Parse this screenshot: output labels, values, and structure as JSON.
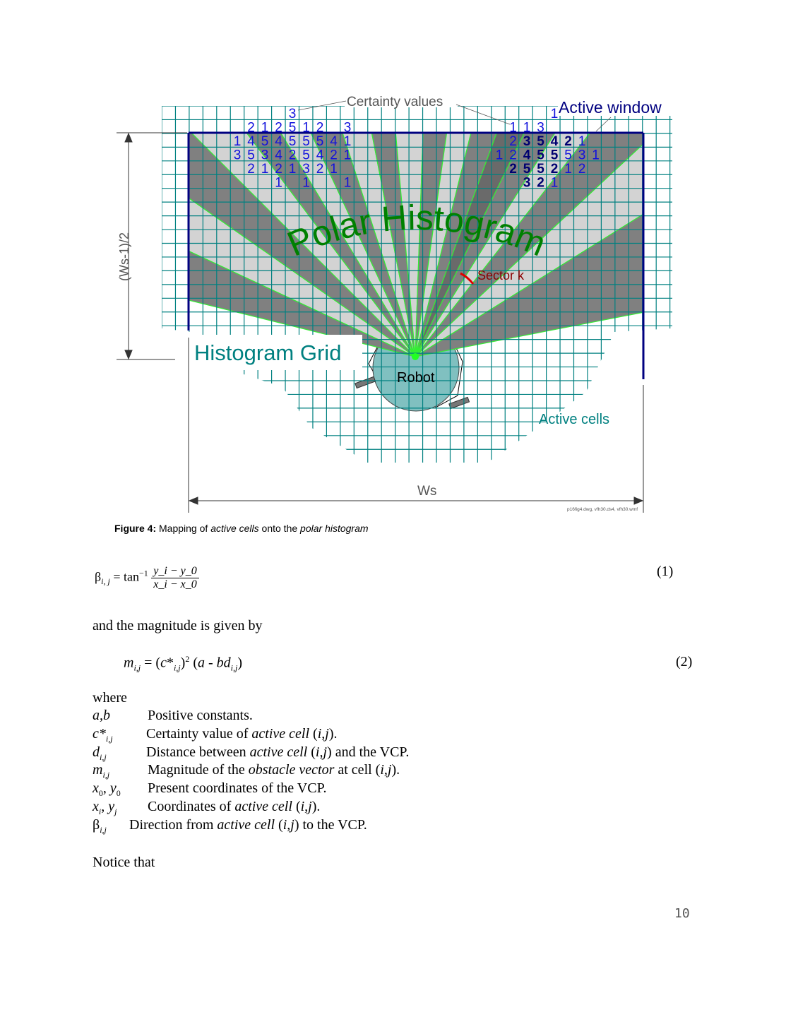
{
  "figure": {
    "labels": {
      "certainty_values": "Certainty values",
      "active_window": "Active window",
      "polar_histogram": "Polar Histogram",
      "sector_k": "Sector k",
      "histogram_grid": "Histogram Grid",
      "robot": "Robot",
      "active_cells": "Active cells",
      "half_width": "(Ws-1)/2",
      "width": "Ws",
      "file_note": "p16fig4.dwg, vfh30.ds4, vfh30.wmf"
    },
    "certainty_left": [
      [
        "",
        "",
        "",
        "",
        "3",
        "",
        "",
        "",
        ""
      ],
      [
        "",
        "2",
        "1",
        "2",
        "5",
        "1",
        "2",
        "",
        "3"
      ],
      [
        "1",
        "4",
        "5",
        "4",
        "5",
        "5",
        "5",
        "4",
        "1"
      ],
      [
        "3",
        "5",
        "3",
        "4",
        "2",
        "5",
        "4",
        "2",
        "1"
      ],
      [
        "",
        "2",
        "1",
        "2",
        "1",
        "3",
        "2",
        "1",
        ""
      ],
      [
        "",
        "",
        "",
        "1",
        "",
        "1",
        "",
        "",
        "1"
      ]
    ],
    "certainty_right": [
      [
        "",
        "",
        "",
        "",
        "1",
        "",
        "",
        ""
      ],
      [
        "",
        "1",
        "1",
        "3",
        "",
        "",
        "",
        ""
      ],
      [
        "",
        "2",
        "3*",
        "5*",
        "4*",
        "2*",
        "1",
        ""
      ],
      [
        "1",
        "2",
        "4*",
        "5*",
        "5*",
        "5",
        "3",
        "1"
      ],
      [
        "",
        "2*",
        "5*",
        "5*",
        "2*",
        "1",
        "2",
        ""
      ],
      [
        "",
        "",
        "3*",
        "2*",
        "1",
        "",
        "",
        ""
      ]
    ],
    "colors": {
      "grid": "#008080",
      "window": "#000080",
      "sector_dark": "#808080",
      "sector_light": "#d3d3d3",
      "sector_k": "#6a6a6a",
      "sector_edge": "#33ee33",
      "robot": "#80c0c0",
      "certainty": "#1010dd",
      "certainty_bold": "#000070",
      "polar_label": "#008000",
      "sector_label": "#8b0000"
    }
  },
  "caption": {
    "figure_no": "Figure 4:",
    "t1": "Mapping of ",
    "t2": "active cells",
    "t3": " onto the ",
    "t4": "polar histogram"
  },
  "eq1": {
    "lhs": "β",
    "lhs_sub": "i, j",
    "op": " = tan",
    "sup": "−1",
    "num": "y_i − y_0",
    "den": "x_i − x_0",
    "number": "(1)"
  },
  "intro2": "and the magnitude is given by",
  "eq2": {
    "text": "m_{i,j} = (c*_{i,j})^2 (a - bd_{i,j})",
    "number": "(2)"
  },
  "where": "where",
  "definitions": [
    {
      "term": "a,b",
      "desc": "Positive constants."
    },
    {
      "term": "c*i,j",
      "desc": "Certainty value of active cell (i,j)."
    },
    {
      "term": "di,j",
      "desc": "Distance between active cell (i,j) and the VCP."
    },
    {
      "term": "mi,j",
      "desc": "Magnitude of the obstacle vector at cell (i,j)."
    },
    {
      "term": "x0, y0",
      "desc": "Present coordinates of the VCP."
    },
    {
      "term": "xi, yj",
      "desc": "Coordinates of active cell (i,j)."
    },
    {
      "term": "βi,j",
      "desc": "Direction from active cell (i,j) to the VCP."
    }
  ],
  "notice": "Notice that",
  "page_number": "10"
}
